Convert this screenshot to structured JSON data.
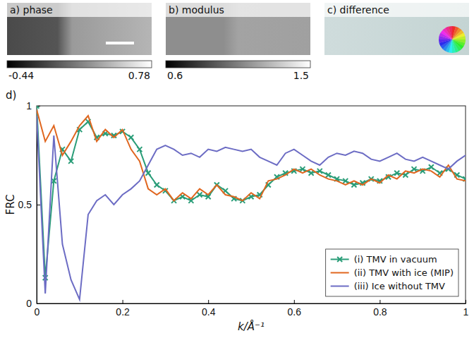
{
  "image_panels": [
    {
      "title": "a) phase",
      "colorbar": {
        "range": [
          -0.44,
          0.78
        ],
        "ticks": [
          -0.44,
          0.78
        ]
      }
    },
    {
      "title": "b) modulus",
      "colorbar": {
        "range": [
          0.6,
          1.5
        ],
        "ticks": [
          0.6,
          1.5
        ]
      }
    },
    {
      "title": "c) difference"
    }
  ],
  "chart_data": {
    "type": "line",
    "panel": "d)",
    "x_label": "k/Å⁻¹",
    "y_label": "FRC",
    "xlim": [
      0,
      1
    ],
    "ylim": [
      0,
      1
    ],
    "xticks": [
      0,
      0.2,
      0.4,
      0.6,
      0.8,
      1
    ],
    "yticks": [
      0,
      0.5,
      1
    ],
    "legend": "bottom-right",
    "x": [
      0,
      0.02,
      0.04,
      0.06,
      0.08,
      0.1,
      0.12,
      0.14,
      0.16,
      0.18,
      0.2,
      0.22,
      0.24,
      0.26,
      0.28,
      0.3,
      0.32,
      0.34,
      0.36,
      0.38,
      0.4,
      0.42,
      0.44,
      0.46,
      0.48,
      0.5,
      0.52,
      0.54,
      0.56,
      0.58,
      0.6,
      0.62,
      0.64,
      0.66,
      0.68,
      0.7,
      0.72,
      0.74,
      0.76,
      0.78,
      0.8,
      0.82,
      0.84,
      0.86,
      0.88,
      0.9,
      0.92,
      0.94,
      0.96,
      0.98,
      1
    ],
    "series": [
      {
        "name": "(i) TMV in vacuum",
        "color": "#2a9d78",
        "marker": "x",
        "values": [
          1.0,
          0.13,
          0.62,
          0.78,
          0.72,
          0.88,
          0.92,
          0.84,
          0.86,
          0.85,
          0.87,
          0.84,
          0.78,
          0.66,
          0.6,
          0.57,
          0.52,
          0.54,
          0.52,
          0.55,
          0.54,
          0.6,
          0.57,
          0.53,
          0.52,
          0.54,
          0.55,
          0.6,
          0.64,
          0.66,
          0.67,
          0.68,
          0.66,
          0.67,
          0.65,
          0.63,
          0.62,
          0.6,
          0.61,
          0.63,
          0.62,
          0.64,
          0.66,
          0.65,
          0.68,
          0.67,
          0.69,
          0.66,
          0.68,
          0.65,
          0.63
        ]
      },
      {
        "name": "(ii) TMV with ice (MIP)",
        "color": "#e0661f",
        "values": [
          0.98,
          0.82,
          0.9,
          0.75,
          0.82,
          0.9,
          0.95,
          0.82,
          0.88,
          0.84,
          0.88,
          0.78,
          0.72,
          0.58,
          0.55,
          0.58,
          0.52,
          0.56,
          0.53,
          0.58,
          0.55,
          0.6,
          0.55,
          0.54,
          0.52,
          0.56,
          0.53,
          0.62,
          0.63,
          0.65,
          0.68,
          0.66,
          0.68,
          0.65,
          0.63,
          0.62,
          0.6,
          0.62,
          0.6,
          0.63,
          0.61,
          0.65,
          0.63,
          0.67,
          0.66,
          0.68,
          0.67,
          0.64,
          0.7,
          0.63,
          0.62
        ]
      },
      {
        "name": "(iii) Ice without TMV",
        "color": "#6c6cc4",
        "values": [
          0.95,
          0.05,
          0.85,
          0.3,
          0.12,
          0.02,
          0.45,
          0.52,
          0.55,
          0.5,
          0.55,
          0.58,
          0.62,
          0.7,
          0.78,
          0.8,
          0.78,
          0.75,
          0.76,
          0.74,
          0.78,
          0.77,
          0.79,
          0.78,
          0.77,
          0.78,
          0.74,
          0.72,
          0.7,
          0.76,
          0.78,
          0.75,
          0.72,
          0.7,
          0.74,
          0.76,
          0.75,
          0.77,
          0.76,
          0.73,
          0.72,
          0.74,
          0.76,
          0.73,
          0.72,
          0.74,
          0.72,
          0.7,
          0.68,
          0.72,
          0.75
        ]
      }
    ]
  }
}
